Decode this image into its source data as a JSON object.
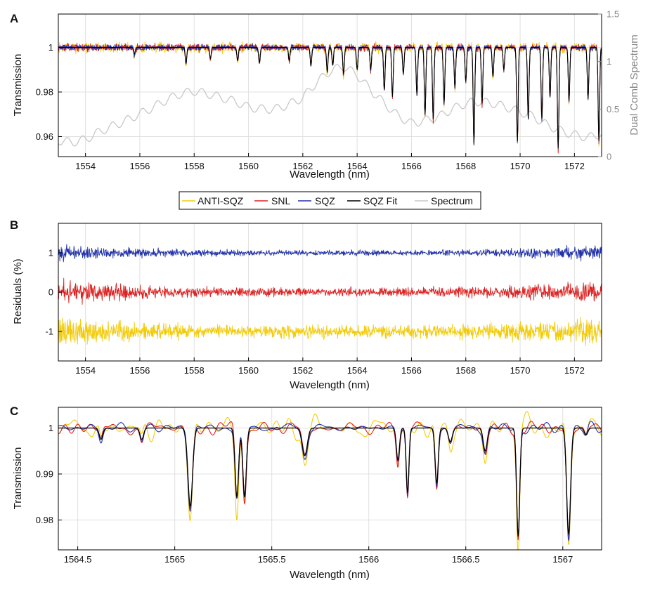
{
  "colors": {
    "anti_sqz": "#f2cc0c",
    "snl": "#dd2222",
    "sqz": "#2233aa",
    "sqz_fit": "#000000",
    "spectrum": "#c8c8c8",
    "grid": "#e0e0e0"
  },
  "legend": {
    "entries": [
      "ANTI-SQZ",
      "SNL",
      "SQZ",
      "SQZ Fit",
      "Spectrum"
    ]
  },
  "chart_data": [
    {
      "type": "line",
      "panel": "A",
      "xlabel": "Wavelength (nm)",
      "ylabel": "Transmission",
      "y2label": "Dual Comb Spectrum",
      "xlim": [
        1553,
        1573
      ],
      "ylim": [
        0.951,
        1.015
      ],
      "y2lim": [
        0,
        1.5
      ],
      "xticks": [
        1554,
        1556,
        1558,
        1560,
        1562,
        1564,
        1566,
        1568,
        1570,
        1572
      ],
      "yticks": [
        0.96,
        0.98,
        1
      ],
      "ytick_labels": [
        "0.96",
        "0.98",
        "1"
      ],
      "y2ticks": [
        0,
        0.5,
        1,
        1.5
      ],
      "y2tick_labels": [
        "0",
        "0.5",
        "1",
        "1.5"
      ],
      "grid": true,
      "noise_amplitude": 0.0022,
      "absorption_lines": [
        [
          1555.8,
          0.997
        ],
        [
          1557.7,
          0.993
        ],
        [
          1558.6,
          0.995
        ],
        [
          1559.6,
          0.994
        ],
        [
          1560.4,
          0.993
        ],
        [
          1561.5,
          0.994
        ],
        [
          1562.3,
          0.992
        ],
        [
          1562.9,
          0.989
        ],
        [
          1563.1,
          0.992
        ],
        [
          1563.5,
          0.988
        ],
        [
          1564.0,
          0.99
        ],
        [
          1564.5,
          0.99
        ],
        [
          1565.0,
          0.981
        ],
        [
          1565.3,
          0.978
        ],
        [
          1565.7,
          0.988
        ],
        [
          1566.2,
          0.979
        ],
        [
          1566.5,
          0.97
        ],
        [
          1566.8,
          0.968
        ],
        [
          1567.2,
          0.975
        ],
        [
          1567.6,
          0.982
        ],
        [
          1568.0,
          0.985
        ],
        [
          1568.3,
          0.957
        ],
        [
          1568.6,
          0.975
        ],
        [
          1569.0,
          0.987
        ],
        [
          1569.4,
          0.99
        ],
        [
          1569.9,
          0.958
        ],
        [
          1570.3,
          0.968
        ],
        [
          1570.8,
          0.968
        ],
        [
          1571.1,
          0.978
        ],
        [
          1571.4,
          0.955
        ],
        [
          1571.8,
          0.976
        ],
        [
          1572.5,
          0.977
        ],
        [
          1572.9,
          0.958
        ]
      ],
      "spectrum": {
        "x": [
          1553,
          1553.5,
          1554,
          1554.5,
          1555,
          1555.5,
          1556,
          1556.5,
          1557,
          1557.5,
          1558,
          1558.5,
          1559,
          1559.5,
          1560,
          1560.5,
          1561,
          1561.5,
          1562,
          1562.5,
          1563,
          1563.5,
          1564,
          1564.5,
          1565,
          1565.5,
          1566,
          1566.5,
          1567,
          1567.5,
          1568,
          1568.5,
          1569,
          1569.5,
          1570,
          1570.5,
          1571,
          1571.5,
          1572,
          1572.5,
          1573
        ],
        "values": [
          0.17,
          0.15,
          0.18,
          0.26,
          0.32,
          0.38,
          0.45,
          0.52,
          0.6,
          0.66,
          0.69,
          0.66,
          0.62,
          0.58,
          0.52,
          0.5,
          0.5,
          0.55,
          0.62,
          0.78,
          0.9,
          0.95,
          0.86,
          0.7,
          0.56,
          0.43,
          0.35,
          0.38,
          0.42,
          0.5,
          0.56,
          0.58,
          0.56,
          0.52,
          0.47,
          0.42,
          0.33,
          0.27,
          0.23,
          0.2,
          0.24
        ],
        "ripple_period": 0.55,
        "ripple_amplitude": 0.045
      }
    },
    {
      "type": "line",
      "panel": "B",
      "xlabel": "Wavelength (nm)",
      "ylabel": "Residuals (%)",
      "xlim": [
        1553,
        1573
      ],
      "ylim": [
        -1.75,
        1.75
      ],
      "xticks": [
        1554,
        1556,
        1558,
        1560,
        1562,
        1564,
        1566,
        1568,
        1570,
        1572
      ],
      "yticks": [
        -1,
        0,
        1
      ],
      "ytick_labels": [
        "-1",
        "0",
        "1"
      ],
      "grid": true,
      "series": [
        {
          "name": "SQZ",
          "offset": 1,
          "amplitude_center": 0.07,
          "amplitude_edge": 0.2
        },
        {
          "name": "SNL",
          "offset": 0,
          "amplitude_center": 0.11,
          "amplitude_edge": 0.3
        },
        {
          "name": "ANTI-SQZ",
          "offset": -1,
          "amplitude_center": 0.16,
          "amplitude_edge": 0.4
        }
      ]
    },
    {
      "type": "line",
      "panel": "C",
      "xlabel": "Wavelength (nm)",
      "ylabel": "Transmission",
      "xlim": [
        1564.4,
        1567.2
      ],
      "ylim": [
        0.9735,
        1.0045
      ],
      "xticks": [
        1564.5,
        1565,
        1565.5,
        1566,
        1566.5,
        1567
      ],
      "xtick_labels": [
        "1564.5",
        "1565",
        "1565.5",
        "1566",
        "1566.5",
        "1567"
      ],
      "yticks": [
        0.98,
        0.99,
        1
      ],
      "ytick_labels": [
        "0.98",
        "0.99",
        "1"
      ],
      "grid": true,
      "absorption_lines": [
        [
          1564.62,
          0.9975,
          0.009
        ],
        [
          1564.83,
          0.9975,
          0.009
        ],
        [
          1565.08,
          0.983,
          0.012
        ],
        [
          1565.32,
          0.985,
          0.009
        ],
        [
          1565.36,
          0.985,
          0.009
        ],
        [
          1565.67,
          0.994,
          0.013
        ],
        [
          1566.15,
          0.993,
          0.008
        ],
        [
          1566.2,
          0.986,
          0.007
        ],
        [
          1566.35,
          0.988,
          0.008
        ],
        [
          1566.42,
          0.997,
          0.01
        ],
        [
          1566.6,
          0.995,
          0.01
        ],
        [
          1566.77,
          0.9765,
          0.008
        ],
        [
          1567.03,
          0.977,
          0.01
        ],
        [
          1567.12,
          0.9985,
          0.009
        ]
      ],
      "noise_amplitudes": {
        "SNL": 0.0012,
        "SQZ": 0.0008,
        "ANTI-SQZ": 0.0019
      }
    }
  ]
}
